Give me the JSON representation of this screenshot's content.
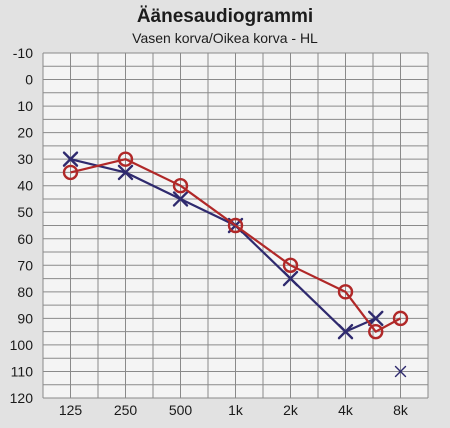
{
  "title": "Äänesaudiogrammi",
  "subtitle": "Vasen korva/Oikea korva - HL",
  "chart_data": {
    "type": "line",
    "title": "Äänesaudiogrammi",
    "subtitle": "Vasen korva/Oikea korva - HL",
    "x_categories": [
      "125",
      "250",
      "500",
      "1k",
      "2k",
      "4k",
      "8k"
    ],
    "y_ticks": [
      -10,
      0,
      10,
      20,
      30,
      40,
      50,
      60,
      70,
      80,
      90,
      100,
      110,
      120
    ],
    "ylim": [
      -10,
      120
    ],
    "y_inverted": true,
    "grid": true,
    "series": [
      {
        "marker": "x",
        "color": "#2f2a6e",
        "points": [
          {
            "x": "125",
            "y": 30
          },
          {
            "x": "250",
            "y": 35
          },
          {
            "x": "500",
            "y": 45
          },
          {
            "x": "1k",
            "y": 55
          },
          {
            "x": "2k",
            "y": 75
          },
          {
            "x": "4k",
            "y": 95
          },
          {
            "x": "6k",
            "y": 90
          }
        ],
        "unconnected_points": [
          {
            "x": "8k",
            "y": 110
          }
        ]
      },
      {
        "marker": "o",
        "color": "#b02828",
        "points": [
          {
            "x": "125",
            "y": 35
          },
          {
            "x": "250",
            "y": 30
          },
          {
            "x": "500",
            "y": 40
          },
          {
            "x": "1k",
            "y": 55
          },
          {
            "x": "2k",
            "y": 70
          },
          {
            "x": "4k",
            "y": 80
          },
          {
            "x": "6k",
            "y": 95
          },
          {
            "x": "8k",
            "y": 90
          }
        ]
      }
    ]
  }
}
